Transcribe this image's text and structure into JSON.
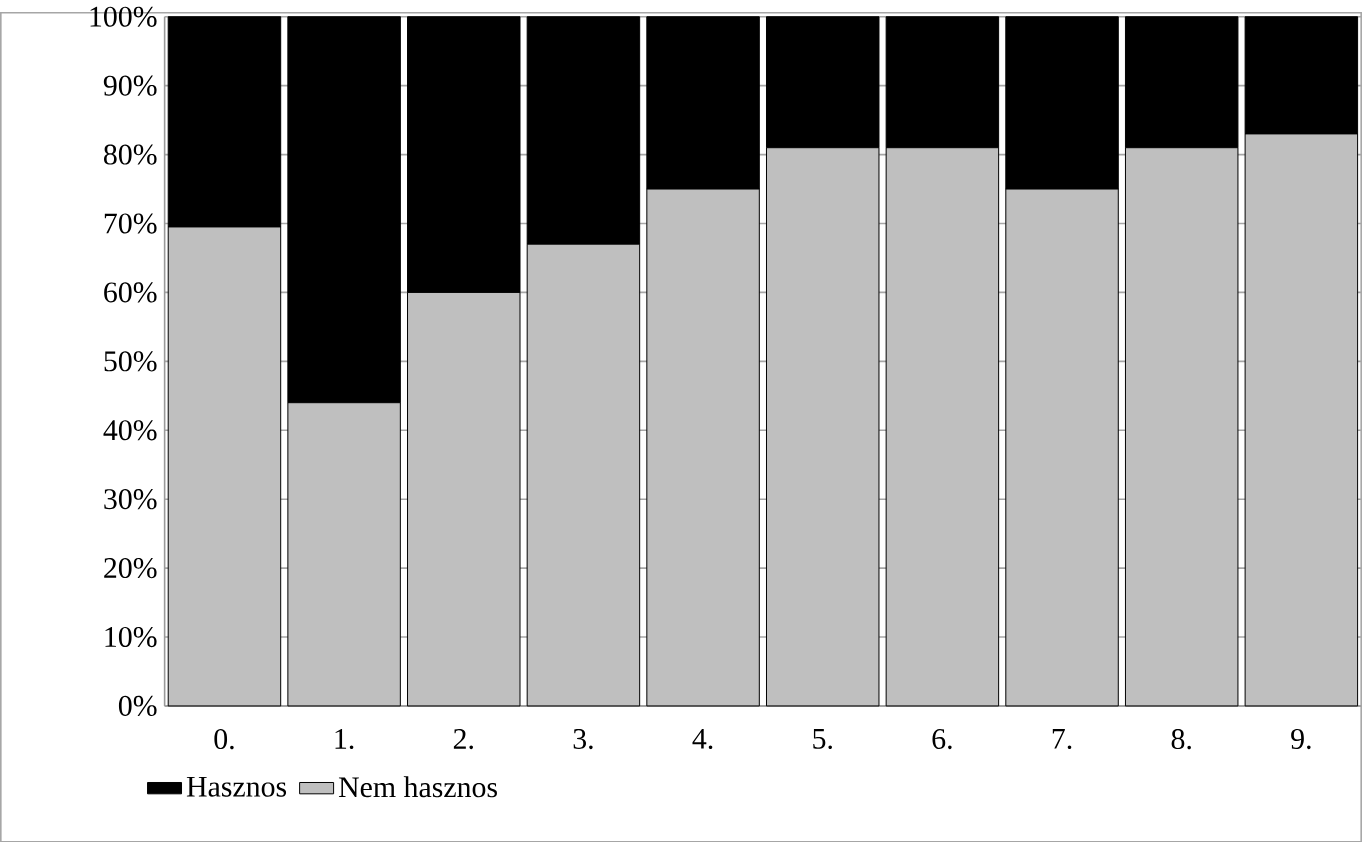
{
  "chart_data": {
    "type": "bar",
    "stacked": true,
    "categories": [
      "0.",
      "1.",
      "2.",
      "3.",
      "4.",
      "5.",
      "6.",
      "7.",
      "8.",
      "9."
    ],
    "series": [
      {
        "name": "Nem hasznos",
        "color": "#bfbfbf",
        "values": [
          69.5,
          44,
          60,
          67,
          75,
          81,
          81,
          75,
          81,
          83
        ]
      },
      {
        "name": "Hasznos",
        "color": "#000000",
        "values": [
          30.5,
          56,
          40,
          33,
          25,
          19,
          19,
          25,
          19,
          17
        ]
      }
    ],
    "ylim": [
      0,
      100
    ],
    "yticks": [
      {
        "value": 0,
        "label": "0%"
      },
      {
        "value": 10,
        "label": "10%"
      },
      {
        "value": 20,
        "label": "20%"
      },
      {
        "value": 30,
        "label": "30%"
      },
      {
        "value": 40,
        "label": "40%"
      },
      {
        "value": 50,
        "label": "50%"
      },
      {
        "value": 60,
        "label": "60%"
      },
      {
        "value": 70,
        "label": "70%"
      },
      {
        "value": 80,
        "label": "80%"
      },
      {
        "value": 90,
        "label": "90%"
      },
      {
        "value": 100,
        "label": "100%"
      }
    ],
    "grid": "y",
    "legend": "bottom left"
  }
}
